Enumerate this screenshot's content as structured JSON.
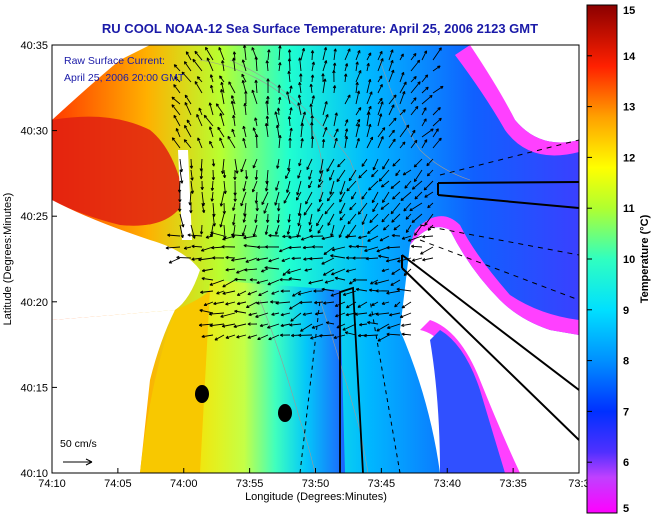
{
  "chart_data": {
    "type": "heatmap",
    "title": "RU COOL  NOAA-12  Sea Surface Temperature:  April 25, 2006 2123 GMT",
    "xlabel": "Longitude (Degrees:Minutes)",
    "ylabel": "Latitude (Degrees:Minutes)",
    "x_ticks": [
      "74:10",
      "74:05",
      "74:00",
      "73:55",
      "73:50",
      "73:45",
      "73:40",
      "73:35",
      "73:3"
    ],
    "y_ticks": [
      "40:35",
      "40:30",
      "40:25",
      "40:20",
      "40:15",
      "40:10"
    ],
    "x_range_minutes": [
      -4450,
      -4410
    ],
    "y_range_minutes": [
      2410,
      2435
    ],
    "colorbar": {
      "label": "Temperature (°C)",
      "ticks": [
        "15",
        "14",
        "13",
        "12",
        "11",
        "10",
        "9",
        "8",
        "7",
        "6",
        "5"
      ],
      "range": [
        5,
        15
      ]
    },
    "annotations": {
      "current_label_1": "Raw Surface Current:",
      "current_label_2": "April 25, 2006 20:00 GMT",
      "scale_label": "50 cm/s"
    },
    "grid": false
  }
}
